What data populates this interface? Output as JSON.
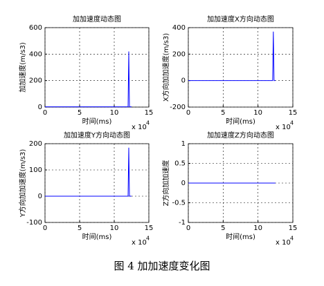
{
  "chart_data": [
    {
      "type": "line",
      "title": "加加速度动态图",
      "xlabel": "时间(ms)",
      "ylabel": "加加速度(m/s3)",
      "x_multiplier": "x 10",
      "x_multiplier_exponent": "4",
      "x": [
        0,
        12,
        12.1,
        12.2,
        12.5
      ],
      "series": [
        {
          "color": "#0000ff",
          "values": [
            2,
            2,
            420,
            2,
            2
          ]
        }
      ],
      "xlim": [
        0,
        15
      ],
      "xticks": [
        0,
        5,
        10,
        15
      ],
      "ylim": [
        0,
        600
      ],
      "yticks": [
        0,
        200,
        400,
        600
      ],
      "grid": true
    },
    {
      "type": "line",
      "title": "加加速度X方向动态图",
      "xlabel": "时间(ms)",
      "ylabel": "X方向加加速度(m/s3)",
      "x_multiplier": "x 10",
      "x_multiplier_exponent": "4",
      "x": [
        0,
        12.1,
        12.2,
        12.3,
        12.5
      ],
      "series": [
        {
          "color": "#0000ff",
          "values": [
            0,
            0,
            370,
            0,
            0
          ]
        }
      ],
      "xlim": [
        0,
        15
      ],
      "xticks": [
        0,
        5,
        10,
        15
      ],
      "ylim": [
        -200,
        400
      ],
      "yticks": [
        -200,
        0,
        200,
        400
      ],
      "grid": true
    },
    {
      "type": "line",
      "title": "加加速度Y方向动态图",
      "xlabel": "时间(ms)",
      "ylabel": "Y方向加加速度(m/s3)",
      "x_multiplier": "x 10",
      "x_multiplier_exponent": "4",
      "x": [
        0,
        12,
        12.1,
        12.2,
        12.5
      ],
      "series": [
        {
          "color": "#0000ff",
          "values": [
            0,
            0,
            185,
            0,
            0
          ]
        }
      ],
      "xlim": [
        0,
        15
      ],
      "xticks": [
        0,
        5,
        10,
        15
      ],
      "ylim": [
        -100,
        200
      ],
      "yticks": [
        -100,
        0,
        100,
        200
      ],
      "grid": true
    },
    {
      "type": "line",
      "title": "加加速度Z方向动态图",
      "xlabel": "时间(ms)",
      "ylabel": "Z方向加加速度",
      "x_multiplier": "x 10",
      "x_multiplier_exponent": "4",
      "x": [
        0,
        12.5
      ],
      "series": [
        {
          "color": "#0000ff",
          "values": [
            0,
            0
          ]
        }
      ],
      "xlim": [
        0,
        15
      ],
      "xticks": [
        0,
        5,
        10,
        15
      ],
      "ylim": [
        -1,
        1
      ],
      "yticks": [
        -1,
        -0.5,
        0,
        0.5,
        1
      ],
      "grid": true
    }
  ],
  "caption": "图 4  加加速度变化图"
}
